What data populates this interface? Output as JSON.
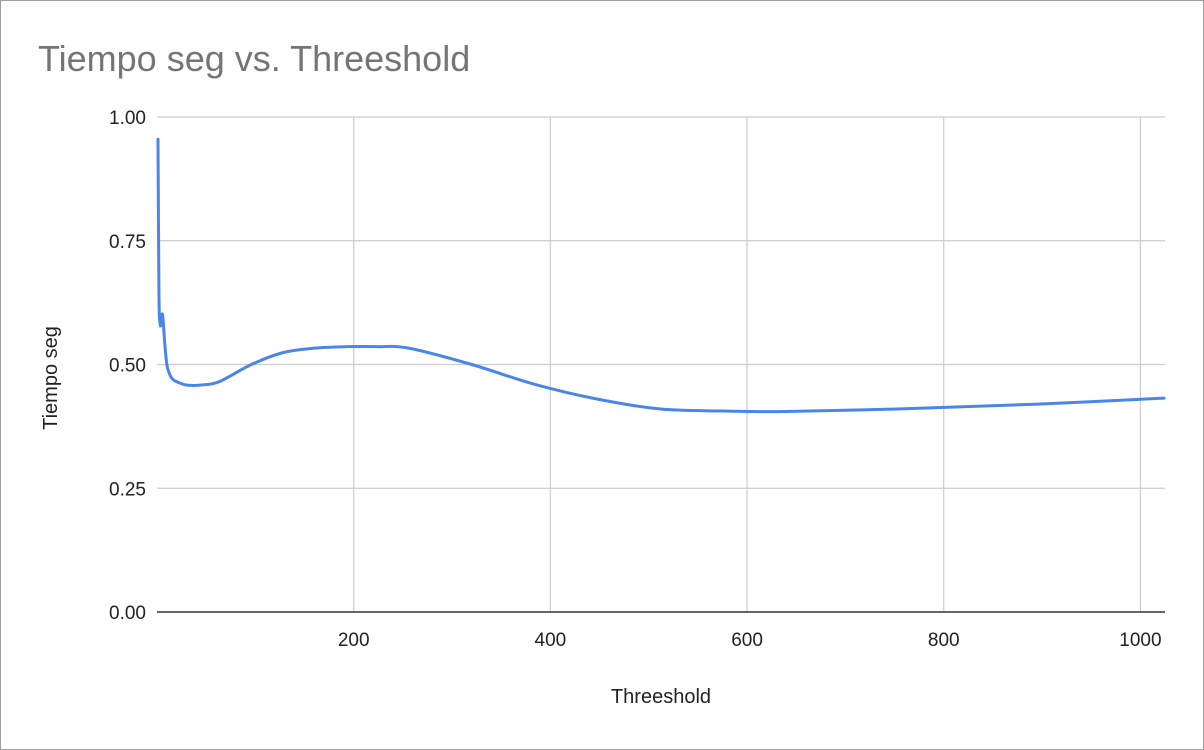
{
  "chart_data": {
    "type": "line",
    "title": "Tiempo seg vs. Threeshold",
    "xlabel": "Threeshold",
    "ylabel": "Tiempo seg",
    "xlim": [
      0,
      1025
    ],
    "ylim": [
      0,
      1
    ],
    "x_ticks": [
      {
        "value": 200,
        "label": "200"
      },
      {
        "value": 400,
        "label": "400"
      },
      {
        "value": 600,
        "label": "600"
      },
      {
        "value": 800,
        "label": "800"
      },
      {
        "value": 1000,
        "label": "1000"
      }
    ],
    "y_ticks": [
      {
        "value": 0,
        "label": "0.00"
      },
      {
        "value": 0.25,
        "label": "0.25"
      },
      {
        "value": 0.5,
        "label": "0.50"
      },
      {
        "value": 0.75,
        "label": "0.75"
      },
      {
        "value": 1,
        "label": "1.00"
      }
    ],
    "grid": true,
    "series": [
      {
        "color": "#4a86e8",
        "x": [
          1,
          2,
          3,
          4,
          5,
          6,
          8,
          10,
          12,
          16,
          24,
          32,
          48,
          64,
          96,
          128,
          160,
          192,
          224,
          256,
          320,
          384,
          448,
          512,
          576,
          640,
          768,
          896,
          1024
        ],
        "y": [
          0.955,
          0.64,
          0.585,
          0.58,
          0.6,
          0.595,
          0.54,
          0.5,
          0.485,
          0.47,
          0.462,
          0.458,
          0.459,
          0.466,
          0.5,
          0.524,
          0.533,
          0.536,
          0.536,
          0.533,
          0.5,
          0.46,
          0.43,
          0.41,
          0.406,
          0.405,
          0.411,
          0.42,
          0.432
        ]
      }
    ]
  }
}
